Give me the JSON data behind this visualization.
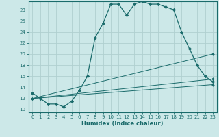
{
  "title": "",
  "xlabel": "Humidex (Indice chaleur)",
  "bg_color": "#cce8e8",
  "grid_color": "#b0d0d0",
  "line_color": "#1a6b6b",
  "xlim": [
    -0.5,
    23.5
  ],
  "ylim": [
    9.5,
    29.5
  ],
  "xticks": [
    0,
    1,
    2,
    3,
    4,
    5,
    6,
    7,
    8,
    9,
    10,
    11,
    12,
    13,
    14,
    15,
    16,
    17,
    18,
    19,
    20,
    21,
    22,
    23
  ],
  "yticks": [
    10,
    12,
    14,
    16,
    18,
    20,
    22,
    24,
    26,
    28
  ],
  "series": [
    {
      "x": [
        0,
        1,
        2,
        3,
        4,
        5,
        6,
        7,
        8,
        9,
        10,
        11,
        12,
        13,
        14,
        15,
        16,
        17,
        18,
        19,
        20,
        21,
        22,
        23
      ],
      "y": [
        13,
        12,
        11,
        11,
        10.5,
        11.5,
        13.5,
        16,
        23,
        25.5,
        29,
        29,
        27,
        29,
        29.5,
        29,
        29,
        28.5,
        28,
        24,
        21,
        18,
        16,
        15
      ]
    },
    {
      "x": [
        0,
        23
      ],
      "y": [
        12,
        20
      ]
    },
    {
      "x": [
        0,
        23
      ],
      "y": [
        12,
        15.5
      ]
    },
    {
      "x": [
        0,
        23
      ],
      "y": [
        12,
        14.5
      ]
    }
  ]
}
